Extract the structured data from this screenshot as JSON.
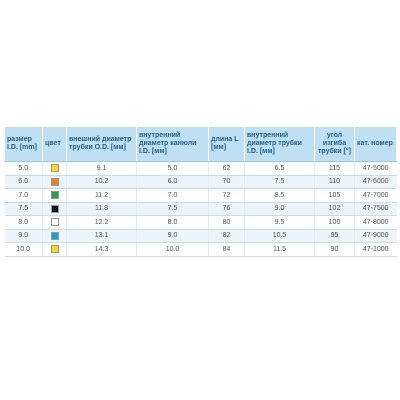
{
  "headers": [
    "размер I.D. [mm]",
    "цвет",
    "внешний диаметр трубки O.D. [мм]",
    "внутренний диаметр канюли I.D. [мм]",
    "длина L [мм]",
    "внутренний диаметр трубки I.D. [мм]",
    "угол изгиба трубки [°]",
    "кат. номер"
  ],
  "rows": [
    {
      "size": "5.0",
      "color": "#f2dc1f",
      "od": "9.1",
      "cannula_id": "5.0",
      "length": "62",
      "tube_id": "6.5",
      "angle": "115",
      "cat": "47-5000"
    },
    {
      "size": "6.0",
      "color": "#f07d1a",
      "od": "10.2",
      "cannula_id": "6.0",
      "length": "70",
      "tube_id": "7.5",
      "angle": "110",
      "cat": "47-6000"
    },
    {
      "size": "7.0",
      "color": "#2e9a4a",
      "od": "11.2",
      "cannula_id": "7.0",
      "length": "72",
      "tube_id": "8.5",
      "angle": "105",
      "cat": "47-7000"
    },
    {
      "size": "7.5",
      "color": "#111111",
      "od": "11.8",
      "cannula_id": "7.5",
      "length": "76",
      "tube_id": "9.0",
      "angle": "102",
      "cat": "47-7500"
    },
    {
      "size": "8.0",
      "color": "#ffffff",
      "od": "12.2",
      "cannula_id": "8.0",
      "length": "80",
      "tube_id": "9.5",
      "angle": "100",
      "cat": "47-8000"
    },
    {
      "size": "9.0",
      "color": "#1f9ee0",
      "od": "13.1",
      "cannula_id": "9.0",
      "length": "82",
      "tube_id": "10.5",
      "angle": "95",
      "cat": "47-9000"
    },
    {
      "size": "10.0",
      "color": "#f2dc1f",
      "od": "14.3",
      "cannula_id": "10.0",
      "length": "84",
      "tube_id": "11.5",
      "angle": "90",
      "cat": "47-1000"
    }
  ]
}
